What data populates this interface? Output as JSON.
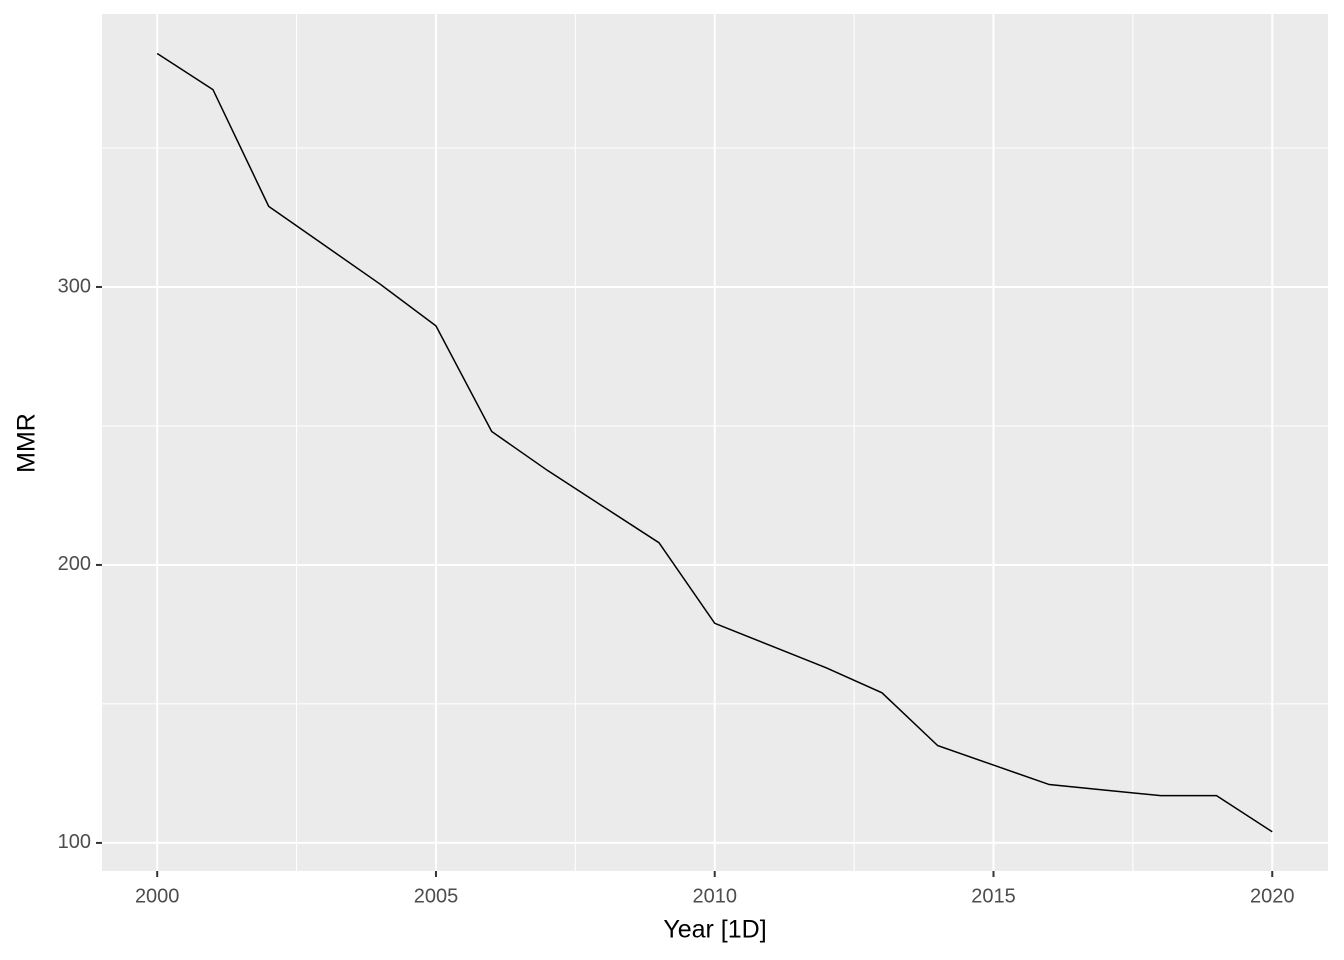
{
  "chart_data": {
    "type": "line",
    "x": [
      2000,
      2001,
      2002,
      2003,
      2004,
      2005,
      2006,
      2007,
      2008,
      2009,
      2010,
      2011,
      2012,
      2013,
      2014,
      2015,
      2016,
      2017,
      2018,
      2019,
      2020
    ],
    "series": [
      {
        "name": "MMR",
        "color": "#000000",
        "values": [
          384,
          371,
          329,
          315,
          301,
          286,
          248,
          234,
          221,
          208,
          179,
          171,
          163,
          154,
          135,
          128,
          121,
          119,
          117,
          117,
          104
        ]
      }
    ],
    "xlabel": "Year [1D]",
    "ylabel": "MMR",
    "xlim": [
      1999.01,
      2021.0
    ],
    "ylim": [
      89.9,
      398.2
    ],
    "xticks": [
      2000,
      2005,
      2010,
      2015,
      2020
    ],
    "yticks": [
      100,
      200,
      300
    ],
    "grid": true
  }
}
